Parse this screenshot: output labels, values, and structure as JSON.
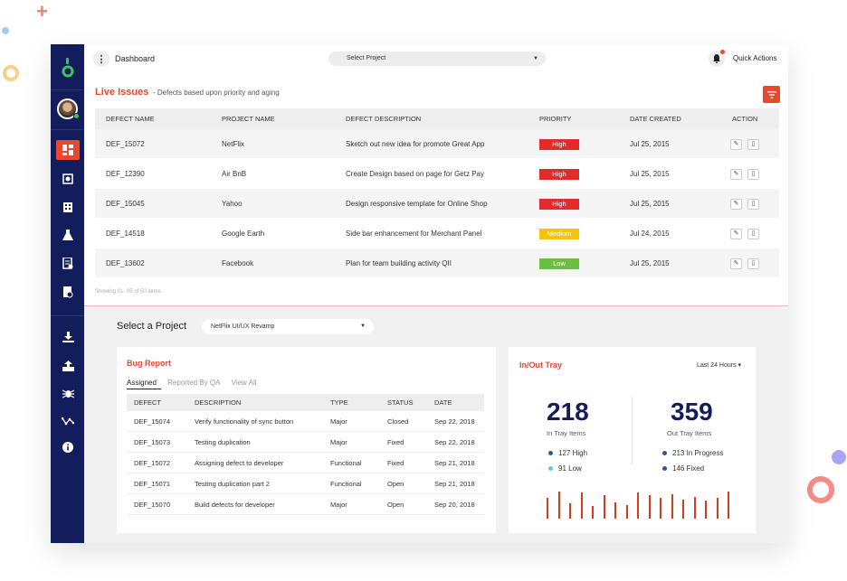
{
  "topbar": {
    "title": "Dashboard",
    "select_project": "Select Project",
    "quick_actions": "Quick Actions"
  },
  "live_issues": {
    "title": "Live Issues",
    "subtitle": "- Defects based upon priority and aging",
    "columns": [
      "DEFECT NAME",
      "PROJECT NAME",
      "DEFECT DESCRIPTION",
      "PRIORITY",
      "DATE CREATED",
      "ACTION"
    ],
    "rows": [
      {
        "defect": "DEF_15072",
        "project": "NetFlix",
        "description": "Sketch out new idea for promote Great App",
        "priority": "High",
        "date": "Jul 25, 2015"
      },
      {
        "defect": "DEF_12390",
        "project": "Air BnB",
        "description": "Create Design based on page for Getz Pay",
        "priority": "High",
        "date": "Jul 25, 2015"
      },
      {
        "defect": "DEF_15045",
        "project": "Yahoo",
        "description": "Design responsive template for Online Shop",
        "priority": "High",
        "date": "Jul 25, 2015"
      },
      {
        "defect": "DEF_14518",
        "project": "Google Earth",
        "description": "Side bar enhancement for Merchant Panel",
        "priority": "Medium",
        "date": "Jul 24, 2015"
      },
      {
        "defect": "DEF_13602",
        "project": "Facebook",
        "description": "Plan for team building activity QII",
        "priority": "Low",
        "date": "Jul 25, 2015"
      }
    ],
    "showing": "Showing 01- 05 of 50 items"
  },
  "select_project": {
    "label": "Select a Project",
    "value": "NetFlix UI/UX Revamp"
  },
  "bug_report": {
    "title": "Bug Report",
    "tabs": [
      "Assigned",
      "Reported By QA",
      "View All"
    ],
    "columns": [
      "DEFECT",
      "DESCRIPTION",
      "TYPE",
      "STATUS",
      "DATE"
    ],
    "rows": [
      {
        "defect": "DEF_15074",
        "description": "Verify functionality of sync button",
        "type": "Major",
        "status": "Closed",
        "date": "Sep 22, 2018"
      },
      {
        "defect": "DEF_15073",
        "description": "Testing duplication",
        "type": "Major",
        "status": "Fixed",
        "date": "Sep 22, 2018"
      },
      {
        "defect": "DEF_15072",
        "description": "Assigning defect to developer",
        "type": "Functional",
        "status": "Fixed",
        "date": "Sep 21, 2018"
      },
      {
        "defect": "DEF_15071",
        "description": "Testing duplication part 2",
        "type": "Functional",
        "status": "Open",
        "date": "Sep 21, 2018"
      },
      {
        "defect": "DEF_15070",
        "description": "Build defects for developer",
        "type": "Major",
        "status": "Open",
        "date": "Sep 20, 2018"
      }
    ]
  },
  "tray": {
    "title": "In/Out Tray",
    "range": "Last 24 Hours",
    "in": {
      "count": "218",
      "label": "In Tray Items",
      "stats": [
        "127 High",
        "91 Low"
      ]
    },
    "out": {
      "count": "359",
      "label": "Out Tray Items",
      "stats": [
        "213 In Progress",
        "146 Fixed"
      ]
    },
    "bar_values": [
      0.75,
      1.0,
      0.55,
      0.95,
      0.45,
      0.85,
      0.6,
      0.5,
      0.95,
      0.85,
      0.75,
      0.9,
      0.7,
      0.8,
      0.65,
      0.75,
      1.0
    ]
  },
  "colors": {
    "sidebar": "#141d5b",
    "accent": "#e8482b",
    "high": "#e32b2b",
    "medium": "#f2c40c",
    "low": "#6bbf3f"
  },
  "icons": [
    "logo-icon",
    "dashboard-icon",
    "bug-icon",
    "building-icon",
    "flask-icon",
    "report-icon",
    "document-settings-icon",
    "download-icon",
    "upload-icon",
    "spider-icon",
    "network-icon",
    "info-icon",
    "bell-icon",
    "filter-icon",
    "edit-icon",
    "delete-icon"
  ]
}
